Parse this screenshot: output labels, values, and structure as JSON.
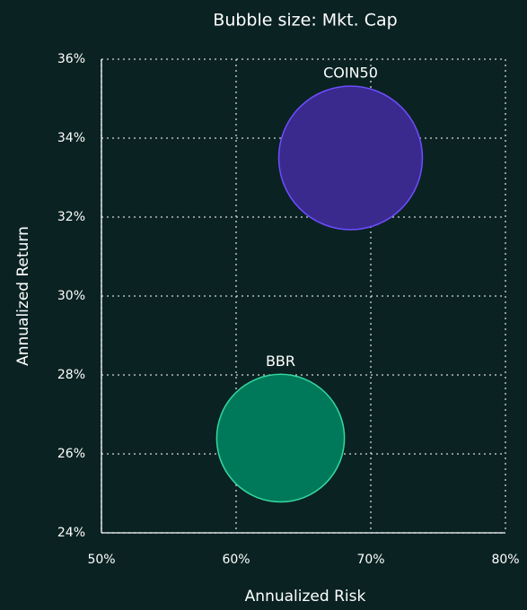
{
  "chart_data": {
    "type": "scatter",
    "title": "Bubble size: Mkt. Cap",
    "xlabel": "Annualized Risk",
    "ylabel": "Annualized Return",
    "xlim": [
      50,
      80
    ],
    "ylim": [
      24,
      36
    ],
    "xticks": [
      {
        "value": 50,
        "label": "50%"
      },
      {
        "value": 60,
        "label": "60%"
      },
      {
        "value": 70,
        "label": "70%"
      },
      {
        "value": 80,
        "label": "80%"
      }
    ],
    "yticks": [
      {
        "value": 24,
        "label": "24%"
      },
      {
        "value": 26,
        "label": "26%"
      },
      {
        "value": 28,
        "label": "28%"
      },
      {
        "value": 30,
        "label": "30%"
      },
      {
        "value": 32,
        "label": "32%"
      },
      {
        "value": 34,
        "label": "34%"
      },
      {
        "value": 36,
        "label": "36%"
      }
    ],
    "grid": true,
    "series": [
      {
        "name": "COIN50",
        "color": "#3a2a8e",
        "edgecolor": "#6d4dff",
        "x": [
          68.5
        ],
        "values": [
          33.5
        ],
        "sizes": [
          100
        ]
      },
      {
        "name": "BBR",
        "color": "#00795a",
        "edgecolor": "#35d8a0",
        "x": [
          63.3
        ],
        "values": [
          26.4
        ],
        "sizes": [
          79
        ]
      }
    ]
  }
}
